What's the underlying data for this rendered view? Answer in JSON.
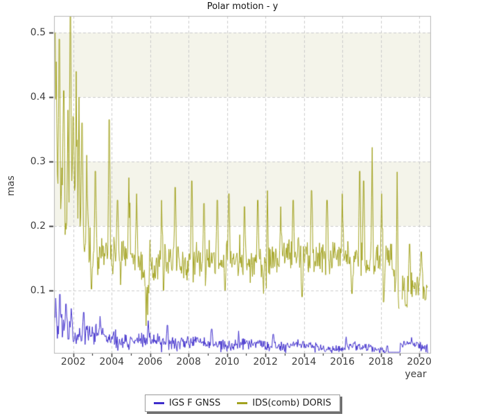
{
  "chart_data": {
    "type": "line",
    "title": "Polar motion - y",
    "xlabel": "year",
    "ylabel": "mas",
    "xlim": [
      2001.0,
      2020.61
    ],
    "ylim": [
      0.003,
      0.526
    ],
    "x_major_ticks": [
      2002,
      2004,
      2006,
      2008,
      2010,
      2012,
      2014,
      2016,
      2018,
      2020
    ],
    "x_minor_ticks": [
      2001,
      2003,
      2005,
      2007,
      2009,
      2011,
      2013,
      2015,
      2017,
      2019
    ],
    "y_ticks": [
      0.1,
      0.2,
      0.3,
      0.4,
      0.5
    ],
    "y_tick_labels": [
      "0.1",
      "0.2",
      "0.3",
      "0.4",
      "0.5"
    ],
    "grid": true,
    "grid_style": "dashed",
    "grid_color": "#cbcbcb",
    "axis_color": "#b4b4b4",
    "tick_color": "#2a2a2a",
    "background_bands": [
      {
        "y0": 0.2,
        "y1": 0.3
      },
      {
        "y0": 0.4,
        "y1": 0.5
      }
    ],
    "band_color": "#f4f4ea",
    "legend_position": "bottom-center",
    "series": [
      {
        "name": "IGS F GNSS",
        "color": "#3e2dcb",
        "style": "noisy-line",
        "segments": [
          {
            "x0": 2001.0,
            "x1": 2001.5,
            "m0": 0.046,
            "m1": 0.042,
            "n": 0.02
          },
          {
            "x0": 2001.5,
            "x1": 2002.3,
            "m0": 0.04,
            "m1": 0.034,
            "n": 0.016
          },
          {
            "x0": 2002.3,
            "x1": 2003.2,
            "m0": 0.03,
            "m1": 0.028,
            "n": 0.013
          },
          {
            "x0": 2003.2,
            "x1": 2004.2,
            "m0": 0.028,
            "m1": 0.024,
            "n": 0.011
          },
          {
            "x0": 2004.2,
            "x1": 2006.0,
            "m0": 0.023,
            "m1": 0.021,
            "n": 0.009
          },
          {
            "x0": 2006.0,
            "x1": 2008.5,
            "m0": 0.021,
            "m1": 0.018,
            "n": 0.008
          },
          {
            "x0": 2008.5,
            "x1": 2011.0,
            "m0": 0.018,
            "m1": 0.016,
            "n": 0.0075
          },
          {
            "x0": 2011.0,
            "x1": 2014.0,
            "m0": 0.016,
            "m1": 0.013,
            "n": 0.0065
          },
          {
            "x0": 2014.0,
            "x1": 2018.37,
            "m0": 0.012,
            "m1": 0.01,
            "n": 0.005
          },
          {
            "x0": 2019.02,
            "x1": 2020.45,
            "m0": 0.013,
            "m1": 0.012,
            "n": 0.006
          }
        ],
        "flats": [
          {
            "x0": 2018.37,
            "x1": 2019.02,
            "v": 0.004
          }
        ],
        "gaps": [],
        "spikes": [
          {
            "x": 2001.08,
            "v": 0.088
          },
          {
            "x": 2001.3,
            "v": 0.094
          },
          {
            "x": 2001.62,
            "v": 0.079
          },
          {
            "x": 2001.9,
            "v": 0.072
          },
          {
            "x": 2002.55,
            "v": 0.066
          },
          {
            "x": 2003.4,
            "v": 0.06
          },
          {
            "x": 2005.9,
            "v": 0.053
          },
          {
            "x": 2006.9,
            "v": 0.046
          },
          {
            "x": 2009.2,
            "v": 0.04
          },
          {
            "x": 2010.6,
            "v": 0.037
          },
          {
            "x": 2012.4,
            "v": 0.032
          },
          {
            "x": 2016.2,
            "v": 0.028
          },
          {
            "x": 2019.6,
            "v": 0.027
          }
        ]
      },
      {
        "name": "IDS(comb) DORIS",
        "color": "#a2a21f",
        "style": "noisy-line",
        "segments": [
          {
            "x0": 2001.0,
            "x1": 2001.45,
            "m0": 0.27,
            "m1": 0.26,
            "n": 0.045
          },
          {
            "x0": 2001.45,
            "x1": 2002.25,
            "m0": 0.25,
            "m1": 0.215,
            "n": 0.042
          },
          {
            "x0": 2002.25,
            "x1": 2002.9,
            "m0": 0.2,
            "m1": 0.17,
            "n": 0.03
          },
          {
            "x0": 2002.9,
            "x1": 2003.6,
            "m0": 0.163,
            "m1": 0.158,
            "n": 0.024
          },
          {
            "x0": 2003.6,
            "x1": 2005.5,
            "m0": 0.156,
            "m1": 0.15,
            "n": 0.022
          },
          {
            "x0": 2005.5,
            "x1": 2006.2,
            "m0": 0.138,
            "m1": 0.142,
            "n": 0.026
          },
          {
            "x0": 2006.2,
            "x1": 2013.0,
            "m0": 0.145,
            "m1": 0.148,
            "n": 0.021
          },
          {
            "x0": 2013.0,
            "x1": 2018.6,
            "m0": 0.152,
            "m1": 0.146,
            "n": 0.022
          },
          {
            "x0": 2018.6,
            "x1": 2019.12,
            "m0": 0.12,
            "m1": 0.105,
            "n": 0.028
          },
          {
            "x0": 2019.12,
            "x1": 2020.45,
            "m0": 0.108,
            "m1": 0.115,
            "n": 0.016
          }
        ],
        "flats": [],
        "gaps": [
          {
            "x0": 2018.98,
            "x1": 2019.1
          }
        ],
        "spikes": [
          {
            "x": 2001.05,
            "v": 0.5
          },
          {
            "x": 2001.1,
            "v": 0.455
          },
          {
            "x": 2001.27,
            "v": 0.49
          },
          {
            "x": 2001.5,
            "v": 0.41
          },
          {
            "x": 2001.72,
            "v": 0.38
          },
          {
            "x": 2001.85,
            "v": 0.53
          },
          {
            "x": 2002.0,
            "v": 0.37
          },
          {
            "x": 2002.16,
            "v": 0.44
          },
          {
            "x": 2002.3,
            "v": 0.4
          },
          {
            "x": 2002.45,
            "v": 0.36
          },
          {
            "x": 2002.7,
            "v": 0.31
          },
          {
            "x": 2003.15,
            "v": 0.285
          },
          {
            "x": 2003.87,
            "v": 0.365
          },
          {
            "x": 2004.3,
            "v": 0.24
          },
          {
            "x": 2004.9,
            "v": 0.275
          },
          {
            "x": 2005.3,
            "v": 0.25
          },
          {
            "x": 2006.6,
            "v": 0.24
          },
          {
            "x": 2007.3,
            "v": 0.26
          },
          {
            "x": 2008.17,
            "v": 0.27
          },
          {
            "x": 2008.8,
            "v": 0.235
          },
          {
            "x": 2009.5,
            "v": 0.24
          },
          {
            "x": 2010.1,
            "v": 0.25
          },
          {
            "x": 2010.9,
            "v": 0.23
          },
          {
            "x": 2011.6,
            "v": 0.24
          },
          {
            "x": 2012.1,
            "v": 0.255
          },
          {
            "x": 2012.8,
            "v": 0.23
          },
          {
            "x": 2013.45,
            "v": 0.24
          },
          {
            "x": 2014.4,
            "v": 0.255
          },
          {
            "x": 2015.2,
            "v": 0.24
          },
          {
            "x": 2016.0,
            "v": 0.25
          },
          {
            "x": 2016.9,
            "v": 0.285
          },
          {
            "x": 2017.1,
            "v": 0.27
          },
          {
            "x": 2017.55,
            "v": 0.322
          },
          {
            "x": 2018.05,
            "v": 0.25
          },
          {
            "x": 2018.85,
            "v": 0.284
          },
          {
            "x": 2019.5,
            "v": 0.172
          },
          {
            "x": 2020.1,
            "v": 0.16
          },
          {
            "x": 2002.95,
            "v": 0.102
          },
          {
            "x": 2005.78,
            "v": 0.045
          },
          {
            "x": 2005.88,
            "v": 0.062
          },
          {
            "x": 2006.7,
            "v": 0.1
          },
          {
            "x": 2008.19,
            "v": 0.068
          },
          {
            "x": 2009.9,
            "v": 0.1
          },
          {
            "x": 2011.9,
            "v": 0.095
          },
          {
            "x": 2013.9,
            "v": 0.09
          },
          {
            "x": 2016.5,
            "v": 0.095
          },
          {
            "x": 2018.15,
            "v": 0.082
          },
          {
            "x": 2018.95,
            "v": 0.072
          },
          {
            "x": 2019.3,
            "v": 0.076
          },
          {
            "x": 2020.3,
            "v": 0.085
          }
        ]
      }
    ]
  }
}
